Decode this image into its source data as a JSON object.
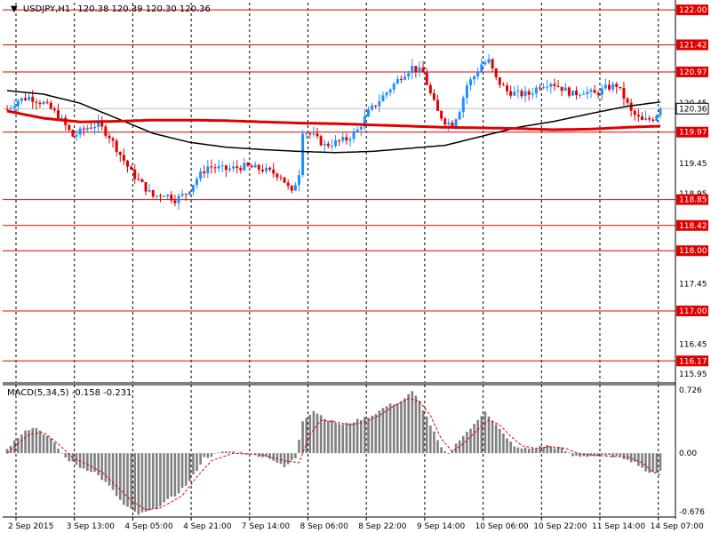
{
  "chart_data": {
    "type": "candlestick",
    "symbol": "USDJPY,H1",
    "ohlc_text": "120.38 120.39 120.30 120.36",
    "current_price": 120.36,
    "colors": {
      "bull": "#1e90ff",
      "bear": "#e00000",
      "hline": "#e00000",
      "slow_ma": "#e00000",
      "fast_ma": "#000000",
      "macd_hist": "#808080",
      "macd_signal": "#e00000",
      "grid": "#000000"
    },
    "price_axis": {
      "ylim": [
        115.82,
        122.12
      ],
      "ticks": [
        121.42,
        120.97,
        120.45,
        119.97,
        119.45,
        118.95,
        118.42,
        118.0,
        117.45,
        117.0,
        116.45,
        115.95
      ],
      "tick_labels": [
        "121.42",
        "120.97",
        "120.45",
        "119.97",
        "119.45",
        "118.95",
        "118.42",
        "118.00",
        "117.45",
        "117.00",
        "116.45",
        "115.95"
      ]
    },
    "horizontal_lines": [
      122.0,
      121.42,
      120.97,
      119.97,
      118.85,
      118.42,
      118.0,
      117.0,
      116.17
    ],
    "horizontal_line_labels": [
      "122.00",
      "121.42",
      "120.97",
      "119.97",
      "118.85",
      "118.42",
      "118.00",
      "117.00",
      "116.17"
    ],
    "x_labels": [
      "2 Sep 2015",
      "3 Sep 13:00",
      "4 Sep 05:00",
      "4 Sep 21:00",
      "7 Sep 14:00",
      "8 Sep 06:00",
      "8 Sep 22:00",
      "9 Sep 14:00",
      "10 Sep 06:00",
      "10 Sep 22:00",
      "11 Sep 14:00",
      "14 Sep 07:00"
    ],
    "x_label_index": [
      0,
      16,
      32,
      48,
      64,
      80,
      96,
      112,
      128,
      144,
      160,
      176
    ],
    "anchors": [
      [
        0,
        120.35
      ],
      [
        3,
        120.5
      ],
      [
        6,
        120.55
      ],
      [
        10,
        120.45
      ],
      [
        14,
        120.25
      ],
      [
        18,
        119.9
      ],
      [
        22,
        120.05
      ],
      [
        25,
        120.1
      ],
      [
        28,
        119.9
      ],
      [
        31,
        119.6
      ],
      [
        34,
        119.3
      ],
      [
        37,
        119.1
      ],
      [
        40,
        118.9
      ],
      [
        43,
        118.95
      ],
      [
        46,
        118.85
      ],
      [
        49,
        118.95
      ],
      [
        52,
        119.2
      ],
      [
        55,
        119.4
      ],
      [
        60,
        119.35
      ],
      [
        65,
        119.4
      ],
      [
        70,
        119.35
      ],
      [
        75,
        119.25
      ],
      [
        78,
        118.95
      ],
      [
        80,
        119.3
      ],
      [
        81,
        120.0
      ],
      [
        84,
        119.9
      ],
      [
        87,
        119.75
      ],
      [
        90,
        119.8
      ],
      [
        93,
        119.85
      ],
      [
        96,
        120.0
      ],
      [
        99,
        120.3
      ],
      [
        102,
        120.5
      ],
      [
        105,
        120.7
      ],
      [
        108,
        120.9
      ],
      [
        111,
        121.05
      ],
      [
        114,
        120.95
      ],
      [
        116,
        120.6
      ],
      [
        118,
        120.3
      ],
      [
        120,
        120.15
      ],
      [
        122,
        120.1
      ],
      [
        124,
        120.35
      ],
      [
        126,
        120.75
      ],
      [
        128,
        120.9
      ],
      [
        130,
        121.1
      ],
      [
        132,
        121.15
      ],
      [
        134,
        120.85
      ],
      [
        137,
        120.65
      ],
      [
        140,
        120.6
      ],
      [
        143,
        120.6
      ],
      [
        146,
        120.75
      ],
      [
        149,
        120.8
      ],
      [
        152,
        120.7
      ],
      [
        155,
        120.6
      ],
      [
        158,
        120.65
      ],
      [
        161,
        120.6
      ],
      [
        164,
        120.7
      ],
      [
        167,
        120.75
      ],
      [
        169,
        120.55
      ],
      [
        171,
        120.3
      ],
      [
        174,
        120.15
      ],
      [
        177,
        120.2
      ],
      [
        179,
        120.36
      ]
    ],
    "fast_ma": [
      [
        0,
        120.66
      ],
      [
        10,
        120.6
      ],
      [
        20,
        120.45
      ],
      [
        30,
        120.2
      ],
      [
        40,
        119.95
      ],
      [
        50,
        119.8
      ],
      [
        60,
        119.72
      ],
      [
        70,
        119.68
      ],
      [
        80,
        119.65
      ],
      [
        90,
        119.63
      ],
      [
        100,
        119.65
      ],
      [
        110,
        119.7
      ],
      [
        120,
        119.75
      ],
      [
        130,
        119.9
      ],
      [
        140,
        120.05
      ],
      [
        150,
        120.15
      ],
      [
        160,
        120.28
      ],
      [
        170,
        120.4
      ],
      [
        179,
        120.47
      ]
    ],
    "slow_ma": [
      [
        0,
        120.32
      ],
      [
        10,
        120.2
      ],
      [
        20,
        120.14
      ],
      [
        30,
        120.15
      ],
      [
        40,
        120.17
      ],
      [
        50,
        120.17
      ],
      [
        60,
        120.16
      ],
      [
        70,
        120.14
      ],
      [
        80,
        120.12
      ],
      [
        90,
        120.11
      ],
      [
        100,
        120.09
      ],
      [
        110,
        120.07
      ],
      [
        120,
        120.05
      ],
      [
        130,
        120.04
      ],
      [
        140,
        120.03
      ],
      [
        150,
        120.01
      ],
      [
        160,
        120.02
      ],
      [
        170,
        120.05
      ],
      [
        179,
        120.07
      ]
    ],
    "macd": {
      "label": "MACD(5,34,5) -0.158 -0.231",
      "ylim": [
        -0.676,
        0.726
      ],
      "ticks": [
        0.726,
        0.0,
        -0.676
      ],
      "tick_labels": [
        "0.726",
        "0.00",
        "-0.676"
      ],
      "hist_anchors": [
        [
          0,
          0.05
        ],
        [
          5,
          0.25
        ],
        [
          8,
          0.27
        ],
        [
          12,
          0.15
        ],
        [
          16,
          -0.05
        ],
        [
          20,
          -0.15
        ],
        [
          24,
          -0.2
        ],
        [
          28,
          -0.35
        ],
        [
          32,
          -0.55
        ],
        [
          36,
          -0.65
        ],
        [
          40,
          -0.6
        ],
        [
          46,
          -0.45
        ],
        [
          50,
          -0.3
        ],
        [
          54,
          -0.05
        ],
        [
          60,
          0.02
        ],
        [
          66,
          0.0
        ],
        [
          72,
          -0.05
        ],
        [
          76,
          -0.15
        ],
        [
          79,
          -0.05
        ],
        [
          81,
          0.35
        ],
        [
          84,
          0.45
        ],
        [
          88,
          0.35
        ],
        [
          92,
          0.3
        ],
        [
          96,
          0.35
        ],
        [
          100,
          0.4
        ],
        [
          104,
          0.5
        ],
        [
          108,
          0.55
        ],
        [
          111,
          0.65
        ],
        [
          113,
          0.55
        ],
        [
          116,
          0.3
        ],
        [
          119,
          0.05
        ],
        [
          121,
          -0.02
        ],
        [
          124,
          0.15
        ],
        [
          128,
          0.3
        ],
        [
          131,
          0.45
        ],
        [
          134,
          0.3
        ],
        [
          137,
          0.15
        ],
        [
          140,
          0.05
        ],
        [
          144,
          0.05
        ],
        [
          148,
          0.08
        ],
        [
          152,
          0.05
        ],
        [
          155,
          -0.03
        ],
        [
          160,
          -0.03
        ],
        [
          166,
          -0.03
        ],
        [
          170,
          -0.06
        ],
        [
          173,
          -0.12
        ],
        [
          176,
          -0.22
        ],
        [
          179,
          -0.18
        ]
      ],
      "signal_anchors": [
        [
          0,
          0.0
        ],
        [
          6,
          0.2
        ],
        [
          10,
          0.22
        ],
        [
          14,
          0.1
        ],
        [
          18,
          -0.05
        ],
        [
          22,
          -0.12
        ],
        [
          26,
          -0.2
        ],
        [
          30,
          -0.35
        ],
        [
          34,
          -0.5
        ],
        [
          38,
          -0.6
        ],
        [
          42,
          -0.58
        ],
        [
          48,
          -0.45
        ],
        [
          52,
          -0.25
        ],
        [
          56,
          -0.08
        ],
        [
          62,
          0.0
        ],
        [
          70,
          -0.02
        ],
        [
          76,
          -0.08
        ],
        [
          80,
          -0.1
        ],
        [
          83,
          0.2
        ],
        [
          86,
          0.35
        ],
        [
          90,
          0.33
        ],
        [
          94,
          0.3
        ],
        [
          98,
          0.33
        ],
        [
          102,
          0.4
        ],
        [
          106,
          0.5
        ],
        [
          110,
          0.58
        ],
        [
          113,
          0.55
        ],
        [
          116,
          0.4
        ],
        [
          119,
          0.15
        ],
        [
          122,
          0.02
        ],
        [
          125,
          0.1
        ],
        [
          129,
          0.25
        ],
        [
          132,
          0.35
        ],
        [
          135,
          0.3
        ],
        [
          138,
          0.18
        ],
        [
          141,
          0.08
        ],
        [
          145,
          0.05
        ],
        [
          149,
          0.07
        ],
        [
          153,
          0.05
        ],
        [
          157,
          -0.01
        ],
        [
          164,
          -0.03
        ],
        [
          170,
          -0.04
        ],
        [
          174,
          -0.1
        ],
        [
          177,
          -0.2
        ],
        [
          179,
          -0.23
        ]
      ]
    }
  }
}
